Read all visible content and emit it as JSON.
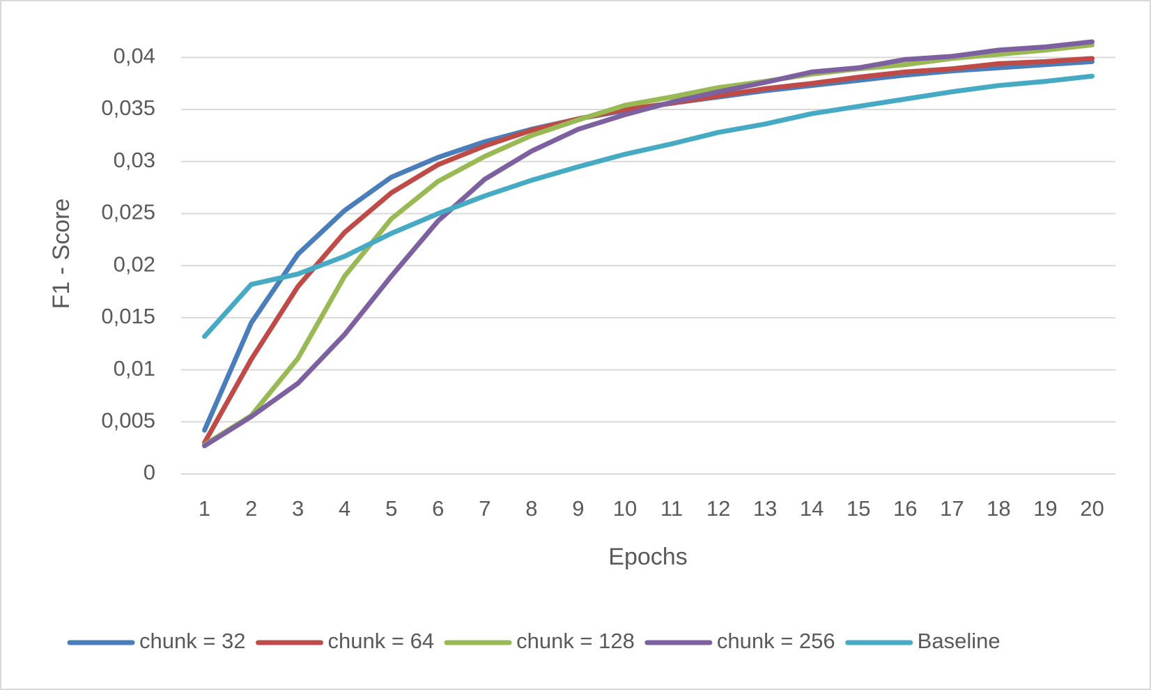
{
  "chart_data": {
    "type": "line",
    "x_label": "Epochs",
    "y_label": "F1 - Score",
    "categories": [
      "1",
      "2",
      "3",
      "4",
      "5",
      "6",
      "7",
      "8",
      "9",
      "10",
      "11",
      "12",
      "13",
      "14",
      "15",
      "16",
      "17",
      "18",
      "19",
      "20"
    ],
    "series": [
      {
        "name": "chunk = 32",
        "color": "#4a7ebb",
        "values": [
          0.0042,
          0.0145,
          0.0211,
          0.0253,
          0.0285,
          0.0304,
          0.0319,
          0.0331,
          0.0341,
          0.0349,
          0.0356,
          0.0362,
          0.0368,
          0.0373,
          0.0378,
          0.0383,
          0.0387,
          0.039,
          0.0393,
          0.0396
        ]
      },
      {
        "name": "chunk = 64",
        "color": "#be4b48",
        "values": [
          0.003,
          0.011,
          0.018,
          0.0232,
          0.027,
          0.0297,
          0.0315,
          0.033,
          0.0341,
          0.035,
          0.0356,
          0.0363,
          0.037,
          0.0375,
          0.0381,
          0.0386,
          0.0389,
          0.0394,
          0.0396,
          0.0399
        ]
      },
      {
        "name": "chunk = 128",
        "color": "#98b954",
        "values": [
          0.0028,
          0.0056,
          0.0111,
          0.019,
          0.0245,
          0.0281,
          0.0305,
          0.0325,
          0.034,
          0.0354,
          0.0362,
          0.0371,
          0.0377,
          0.0384,
          0.0389,
          0.0393,
          0.0399,
          0.0403,
          0.0407,
          0.0412
        ]
      },
      {
        "name": "chunk = 256",
        "color": "#7d60a0",
        "values": [
          0.0027,
          0.0055,
          0.0087,
          0.0134,
          0.019,
          0.0243,
          0.0283,
          0.031,
          0.0331,
          0.0345,
          0.0357,
          0.0367,
          0.0376,
          0.0386,
          0.039,
          0.0398,
          0.0401,
          0.0407,
          0.041,
          0.0415
        ]
      },
      {
        "name": "Baseline",
        "color": "#46aac5",
        "values": [
          0.0132,
          0.0182,
          0.0192,
          0.0209,
          0.0231,
          0.025,
          0.0267,
          0.0282,
          0.0295,
          0.0307,
          0.0317,
          0.0328,
          0.0336,
          0.0346,
          0.0353,
          0.036,
          0.0367,
          0.0373,
          0.0377,
          0.0382
        ]
      }
    ],
    "ylim": [
      0,
      0.0425
    ],
    "yticks": [
      0,
      {
        "value": 0.005,
        "label": "0,005"
      },
      {
        "value": 0.01,
        "label": "0,01"
      },
      {
        "value": 0.015,
        "label": "0,015"
      },
      {
        "value": 0.02,
        "label": "0,02"
      },
      {
        "value": 0.025,
        "label": "0,025"
      },
      {
        "value": 0.03,
        "label": "0,03"
      },
      {
        "value": 0.035,
        "label": "0,035"
      },
      {
        "value": 0.04,
        "label": "0,04"
      }
    ],
    "grid": true,
    "legend": "bottom"
  }
}
